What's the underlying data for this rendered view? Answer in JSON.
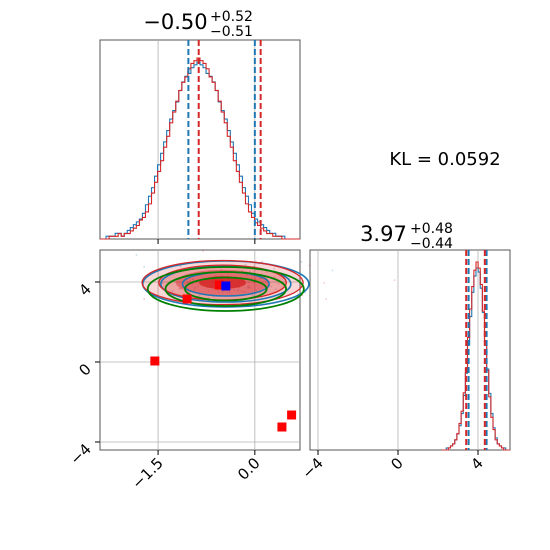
{
  "chart_data": {
    "type": "corner",
    "annotation": "KL = 0.0592",
    "colors": {
      "series_a": "#1f77b4",
      "series_b": "#d62728",
      "contour_green": "#008000",
      "marker_red": "#ff0000",
      "marker_blue": "#0000ff",
      "grid": "#b0b0b0"
    },
    "parameters": [
      {
        "median": "−0.50",
        "plus": "+0.52",
        "minus": "−0.51"
      },
      {
        "median": "3.97",
        "plus": "+0.48",
        "minus": "−0.44"
      }
    ],
    "param1_axis": {
      "range": [
        -2.4,
        0.7
      ],
      "ticks": [
        {
          "value": -1.5,
          "label": "−1.5"
        },
        {
          "value": 0.0,
          "label": "0.0"
        }
      ],
      "grid": true
    },
    "param2_axis": {
      "range": [
        -4.4,
        5.6
      ],
      "ticks": [
        {
          "value": -4,
          "label": "−4"
        },
        {
          "value": 0,
          "label": "0"
        },
        {
          "value": 4,
          "label": "4"
        }
      ],
      "grid": true
    },
    "hist_param1": {
      "quantiles_series_a": [
        -1.03,
        0.0
      ],
      "quantiles_series_b": [
        -0.87,
        0.09
      ],
      "bins_series_a": [
        0,
        0,
        1,
        1,
        1,
        2,
        2,
        1,
        2,
        3,
        4,
        5,
        6,
        7,
        9,
        12,
        15,
        18,
        22,
        26,
        30,
        34,
        38,
        42,
        45,
        48,
        52,
        55,
        57,
        58,
        60,
        61,
        62,
        61,
        60,
        58,
        57,
        55,
        52,
        48,
        45,
        42,
        38,
        34,
        30,
        26,
        22,
        18,
        15,
        12,
        9,
        7,
        6,
        5,
        4,
        3,
        2,
        2,
        1,
        1,
        1,
        0,
        0,
        0,
        0,
        0
      ],
      "bins_series_b": [
        0,
        0,
        0,
        1,
        1,
        1,
        2,
        1,
        2,
        2,
        3,
        4,
        5,
        7,
        8,
        10,
        13,
        17,
        21,
        25,
        29,
        34,
        38,
        43,
        47,
        51,
        55,
        58,
        60,
        63,
        65,
        66,
        67,
        66,
        65,
        63,
        60,
        58,
        55,
        51,
        47,
        43,
        38,
        34,
        29,
        25,
        21,
        17,
        13,
        10,
        8,
        6,
        5,
        4,
        3,
        2,
        2,
        1,
        1,
        1,
        0,
        0,
        0,
        0,
        0,
        0
      ]
    },
    "hist_param2": {
      "quantiles_series_a": [
        3.53,
        4.43
      ],
      "quantiles_series_b": [
        3.41,
        4.34
      ],
      "bins_series_a": [
        0,
        0,
        1,
        1,
        2,
        3,
        5,
        8,
        12,
        18,
        27,
        38,
        52,
        66,
        78,
        86,
        90,
        88,
        80,
        68,
        54,
        40,
        28,
        18,
        11,
        6,
        3,
        2,
        1,
        1,
        0,
        0
      ],
      "bins_series_b": [
        0,
        0,
        0,
        1,
        2,
        3,
        5,
        8,
        13,
        19,
        28,
        40,
        55,
        69,
        80,
        88,
        92,
        89,
        81,
        68,
        53,
        39,
        26,
        16,
        10,
        5,
        3,
        2,
        1,
        0,
        0,
        0
      ]
    },
    "scatter_markers_red": [
      {
        "x": -1.55,
        "y": 0.05
      },
      {
        "x": -1.05,
        "y": 3.15
      },
      {
        "x": 0.57,
        "y": -2.65
      },
      {
        "x": 0.42,
        "y": -3.25
      },
      {
        "x": -0.55,
        "y": 3.85
      }
    ],
    "scatter_markers_blue": [
      {
        "x": -0.45,
        "y": 3.8
      }
    ],
    "joint_contours": {
      "series_b_center": {
        "x": -0.5,
        "y": 3.97
      },
      "series_b_sigma": {
        "x": 0.52,
        "y": 0.46
      },
      "series_a_center": {
        "x": -0.45,
        "y": 3.9
      },
      "series_a_sigma": {
        "x": 0.56,
        "y": 0.5
      },
      "green_center": {
        "x": -0.45,
        "y": 3.65
      },
      "green_sigma": {
        "x": 0.55,
        "y": 0.5
      }
    }
  }
}
